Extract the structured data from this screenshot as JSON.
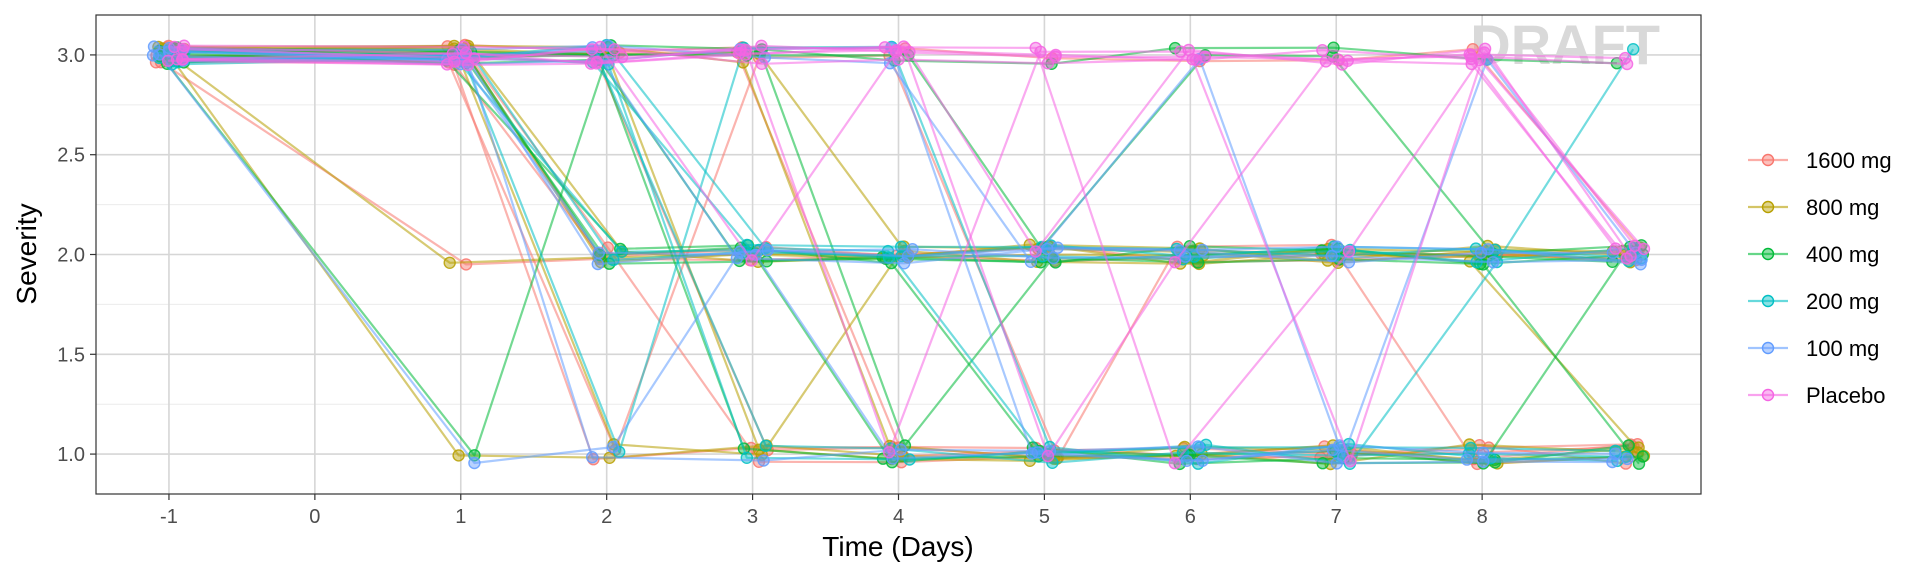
{
  "chart_data": {
    "type": "line",
    "xlabel": "Time (Days)",
    "ylabel": "Severity",
    "watermark": "DRAFT",
    "x_ticks": [
      -1,
      0,
      1,
      2,
      3,
      4,
      5,
      6,
      7,
      8
    ],
    "y_ticks": [
      1.0,
      1.5,
      2.0,
      2.5,
      3.0
    ],
    "y_tick_labels": [
      "1.0",
      "1.5",
      "2.0",
      "2.5",
      "3.0"
    ],
    "x": [
      -1,
      1,
      2,
      3,
      4,
      5,
      6,
      7,
      8,
      9
    ],
    "xlim": [
      -1.5,
      9.5
    ],
    "ylim": [
      0.8,
      3.2
    ],
    "grid": true,
    "legend_position": "right",
    "series": [
      {
        "name": "1600 mg",
        "color": "#F8766D",
        "subjects": [
          [
            3,
            3,
            3,
            3,
            3,
            3,
            3,
            3,
            3,
            2
          ],
          [
            3,
            3,
            2,
            2,
            2,
            2,
            2,
            2,
            2,
            2
          ],
          [
            3,
            3,
            2,
            1,
            1,
            1,
            1,
            1,
            1,
            1
          ],
          [
            3,
            2,
            2,
            2,
            2,
            2,
            2,
            2,
            2,
            2
          ],
          [
            3,
            3,
            3,
            3,
            1,
            1,
            1,
            1,
            1,
            1
          ],
          [
            3,
            3,
            1,
            1,
            1,
            1,
            1,
            1,
            1,
            1
          ],
          [
            3,
            3,
            2,
            2,
            2,
            2,
            2,
            2,
            2,
            2
          ],
          [
            3,
            3,
            3,
            1,
            1,
            1,
            1,
            1,
            1,
            1
          ],
          [
            3,
            3,
            1,
            3,
            3,
            1,
            2,
            2,
            1,
            1
          ]
        ]
      },
      {
        "name": "800 mg",
        "color": "#B79F00",
        "subjects": [
          [
            3,
            3,
            3,
            3,
            2,
            2,
            2,
            2,
            2,
            2
          ],
          [
            3,
            1,
            1,
            1,
            1,
            1,
            1,
            1,
            1,
            1
          ],
          [
            3,
            3,
            1,
            1,
            2,
            2,
            2,
            2,
            2,
            2
          ],
          [
            3,
            3,
            3,
            3,
            1,
            1,
            1,
            1,
            1,
            1
          ],
          [
            3,
            2,
            2,
            2,
            2,
            2,
            2,
            2,
            2,
            2
          ],
          [
            3,
            3,
            2,
            2,
            2,
            2,
            2,
            2,
            2,
            2
          ],
          [
            3,
            3,
            3,
            1,
            1,
            1,
            1,
            1,
            1,
            1
          ],
          [
            3,
            3,
            2,
            2,
            2,
            2,
            2,
            2,
            2,
            1
          ]
        ]
      },
      {
        "name": "400 mg",
        "color": "#00BA38",
        "subjects": [
          [
            3,
            1,
            3,
            3,
            3,
            3,
            3,
            3,
            3,
            3
          ],
          [
            3,
            3,
            3,
            2,
            2,
            2,
            2,
            2,
            2,
            2
          ],
          [
            3,
            3,
            3,
            1,
            1,
            1,
            1,
            1,
            1,
            1
          ],
          [
            3,
            3,
            2,
            2,
            1,
            1,
            1,
            1,
            1,
            2
          ],
          [
            3,
            3,
            3,
            3,
            3,
            2,
            3,
            3,
            2,
            2
          ],
          [
            3,
            3,
            2,
            2,
            2,
            1,
            1,
            1,
            1,
            1
          ],
          [
            3,
            3,
            3,
            3,
            1,
            2,
            2,
            2,
            2,
            2
          ],
          [
            3,
            3,
            2,
            2,
            2,
            2,
            2,
            2,
            2,
            1
          ]
        ]
      },
      {
        "name": "200 mg",
        "color": "#00BFC4",
        "subjects": [
          [
            3,
            3,
            3,
            2,
            2,
            2,
            2,
            2,
            2,
            2
          ],
          [
            3,
            3,
            3,
            1,
            1,
            1,
            1,
            1,
            1,
            1
          ],
          [
            3,
            3,
            1,
            3,
            3,
            1,
            1,
            1,
            1,
            1
          ],
          [
            3,
            3,
            2,
            2,
            2,
            2,
            2,
            2,
            2,
            2
          ],
          [
            3,
            3,
            3,
            2,
            2,
            1,
            1,
            1,
            2,
            3
          ],
          [
            3,
            3,
            2,
            2,
            2,
            2,
            2,
            2,
            2,
            2
          ],
          [
            3,
            3,
            3,
            1,
            1,
            1,
            1,
            1,
            1,
            1
          ]
        ]
      },
      {
        "name": "100 mg",
        "color": "#619CFF",
        "subjects": [
          [
            3,
            1,
            1,
            2,
            2,
            2,
            2,
            2,
            2,
            2
          ],
          [
            3,
            3,
            3,
            3,
            3,
            2,
            3,
            1,
            3,
            2
          ],
          [
            3,
            3,
            2,
            2,
            2,
            2,
            2,
            2,
            2,
            2
          ],
          [
            3,
            3,
            3,
            3,
            3,
            1,
            1,
            1,
            1,
            1
          ],
          [
            3,
            3,
            2,
            2,
            1,
            1,
            1,
            1,
            1,
            1
          ],
          [
            3,
            3,
            3,
            2,
            2,
            2,
            2,
            2,
            2,
            2
          ],
          [
            3,
            3,
            1,
            1,
            1,
            1,
            1,
            1,
            1,
            1
          ]
        ]
      },
      {
        "name": "Placebo",
        "color": "#F564E3",
        "subjects": [
          [
            3,
            3,
            3,
            3,
            3,
            3,
            3,
            3,
            3,
            2
          ],
          [
            3,
            3,
            3,
            2,
            3,
            3,
            3,
            3,
            3,
            3
          ],
          [
            3,
            3,
            3,
            3,
            1,
            3,
            3,
            3,
            3,
            2
          ],
          [
            3,
            3,
            3,
            3,
            3,
            2,
            3,
            3,
            3,
            2
          ],
          [
            3,
            3,
            3,
            3,
            3,
            1,
            2,
            3,
            3,
            3
          ],
          [
            3,
            3,
            3,
            3,
            3,
            3,
            1,
            2,
            3,
            2
          ],
          [
            3,
            3,
            3,
            3,
            3,
            3,
            3,
            1,
            3,
            2
          ]
        ]
      }
    ]
  }
}
